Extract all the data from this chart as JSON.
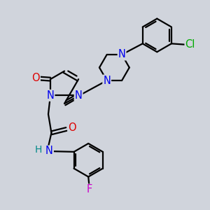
{
  "bg_color": "#d0d4dc",
  "atom_colors": {
    "C": "#000000",
    "N": "#0000ee",
    "O": "#dd0000",
    "F": "#cc00cc",
    "Cl": "#00aa00",
    "H": "#008888"
  },
  "bond_color": "#000000",
  "bond_width": 1.6,
  "font_size": 10.5,
  "figsize": [
    3.0,
    3.0
  ],
  "dpi": 100
}
